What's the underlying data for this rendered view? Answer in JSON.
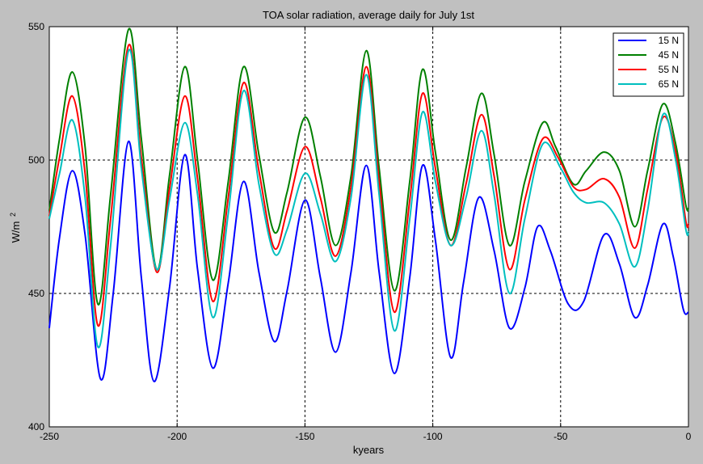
{
  "chart_data": {
    "type": "line",
    "title": "TOA solar radiation, average daily for July 1st",
    "xlabel": "kyears",
    "ylabel": "W/m",
    "ylabel_superscript": "2",
    "xlim": [
      -250,
      0
    ],
    "ylim": [
      400,
      550
    ],
    "xticks": [
      -250,
      -200,
      -150,
      -100,
      -50,
      0
    ],
    "yticks": [
      400,
      450,
      500,
      550
    ],
    "grid": true,
    "legend_position": "top-right",
    "series": [
      {
        "name": "15 N",
        "color": "#0000ff",
        "points": [
          [
            -250,
            437
          ],
          [
            -246,
            471
          ],
          [
            -241,
            496
          ],
          [
            -236,
            472
          ],
          [
            -230,
            418
          ],
          [
            -225,
            450
          ],
          [
            -219,
            507
          ],
          [
            -214,
            456
          ],
          [
            -209,
            417
          ],
          [
            -203,
            452
          ],
          [
            -197,
            502
          ],
          [
            -192,
            459
          ],
          [
            -186,
            422
          ],
          [
            -180,
            454
          ],
          [
            -174,
            492
          ],
          [
            -168,
            458
          ],
          [
            -162,
            432
          ],
          [
            -157,
            451
          ],
          [
            -150,
            485
          ],
          [
            -144,
            456
          ],
          [
            -138,
            428
          ],
          [
            -132,
            458
          ],
          [
            -126,
            498
          ],
          [
            -121,
            458
          ],
          [
            -115,
            420
          ],
          [
            -109,
            456
          ],
          [
            -104,
            498
          ],
          [
            -99,
            470
          ],
          [
            -93,
            426
          ],
          [
            -88,
            454
          ],
          [
            -82,
            486
          ],
          [
            -76,
            466
          ],
          [
            -70,
            437
          ],
          [
            -64,
            452
          ],
          [
            -59,
            475
          ],
          [
            -54,
            466
          ],
          [
            -47,
            446
          ],
          [
            -41,
            447
          ],
          [
            -33,
            472
          ],
          [
            -27,
            461
          ],
          [
            -21,
            441
          ],
          [
            -16,
            453
          ],
          [
            -10,
            476
          ],
          [
            -6,
            464
          ],
          [
            -2,
            444
          ],
          [
            0,
            443
          ]
        ]
      },
      {
        "name": "45 N",
        "color": "#008000",
        "points": [
          [
            -250,
            481
          ],
          [
            -246,
            508
          ],
          [
            -241,
            533
          ],
          [
            -236,
            505
          ],
          [
            -231,
            446
          ],
          [
            -226,
            487
          ],
          [
            -219,
            549
          ],
          [
            -214,
            508
          ],
          [
            -208,
            459
          ],
          [
            -203,
            494
          ],
          [
            -197,
            535
          ],
          [
            -192,
            500
          ],
          [
            -186,
            455
          ],
          [
            -180,
            492
          ],
          [
            -174,
            535
          ],
          [
            -168,
            502
          ],
          [
            -162,
            473
          ],
          [
            -157,
            488
          ],
          [
            -150,
            516
          ],
          [
            -144,
            494
          ],
          [
            -138,
            468
          ],
          [
            -132,
            494
          ],
          [
            -126,
            541
          ],
          [
            -121,
            497
          ],
          [
            -115,
            451
          ],
          [
            -109,
            492
          ],
          [
            -104,
            534
          ],
          [
            -99,
            503
          ],
          [
            -93,
            470
          ],
          [
            -87,
            497
          ],
          [
            -81,
            525
          ],
          [
            -76,
            502
          ],
          [
            -70,
            468
          ],
          [
            -64,
            492
          ],
          [
            -57,
            514
          ],
          [
            -52,
            505
          ],
          [
            -45,
            491
          ],
          [
            -40,
            496
          ],
          [
            -33,
            503
          ],
          [
            -27,
            496
          ],
          [
            -21,
            475
          ],
          [
            -16,
            496
          ],
          [
            -10,
            521
          ],
          [
            -5,
            506
          ],
          [
            -1,
            483
          ],
          [
            0,
            482
          ]
        ]
      },
      {
        "name": "55 N",
        "color": "#ff0000",
        "points": [
          [
            -250,
            479
          ],
          [
            -246,
            501
          ],
          [
            -241,
            524
          ],
          [
            -236,
            495
          ],
          [
            -231,
            438
          ],
          [
            -226,
            478
          ],
          [
            -219,
            543
          ],
          [
            -214,
            501
          ],
          [
            -208,
            458
          ],
          [
            -203,
            489
          ],
          [
            -197,
            524
          ],
          [
            -192,
            493
          ],
          [
            -186,
            447
          ],
          [
            -180,
            486
          ],
          [
            -174,
            529
          ],
          [
            -168,
            496
          ],
          [
            -162,
            467
          ],
          [
            -157,
            481
          ],
          [
            -150,
            505
          ],
          [
            -144,
            486
          ],
          [
            -138,
            464
          ],
          [
            -132,
            490
          ],
          [
            -126,
            535
          ],
          [
            -121,
            492
          ],
          [
            -115,
            443
          ],
          [
            -109,
            485
          ],
          [
            -104,
            525
          ],
          [
            -99,
            497
          ],
          [
            -93,
            468
          ],
          [
            -87,
            491
          ],
          [
            -81,
            517
          ],
          [
            -76,
            494
          ],
          [
            -70,
            459
          ],
          [
            -64,
            485
          ],
          [
            -57,
            508
          ],
          [
            -51,
            501
          ],
          [
            -45,
            490
          ],
          [
            -40,
            489
          ],
          [
            -33,
            493
          ],
          [
            -27,
            486
          ],
          [
            -21,
            467
          ],
          [
            -16,
            489
          ],
          [
            -10,
            516
          ],
          [
            -5,
            503
          ],
          [
            -1,
            477
          ],
          [
            0,
            476
          ]
        ]
      },
      {
        "name": "65 N",
        "color": "#00bfbf",
        "points": [
          [
            -250,
            478
          ],
          [
            -246,
            495
          ],
          [
            -241,
            515
          ],
          [
            -236,
            486
          ],
          [
            -231,
            430
          ],
          [
            -226,
            468
          ],
          [
            -219,
            541
          ],
          [
            -214,
            497
          ],
          [
            -208,
            459
          ],
          [
            -203,
            485
          ],
          [
            -197,
            514
          ],
          [
            -192,
            487
          ],
          [
            -186,
            441
          ],
          [
            -180,
            480
          ],
          [
            -174,
            526
          ],
          [
            -168,
            491
          ],
          [
            -162,
            465
          ],
          [
            -157,
            474
          ],
          [
            -150,
            495
          ],
          [
            -144,
            480
          ],
          [
            -138,
            462
          ],
          [
            -132,
            486
          ],
          [
            -126,
            532
          ],
          [
            -121,
            487
          ],
          [
            -115,
            436
          ],
          [
            -109,
            478
          ],
          [
            -104,
            518
          ],
          [
            -99,
            492
          ],
          [
            -93,
            468
          ],
          [
            -87,
            486
          ],
          [
            -81,
            511
          ],
          [
            -76,
            487
          ],
          [
            -70,
            450
          ],
          [
            -64,
            478
          ],
          [
            -57,
            506
          ],
          [
            -50,
            497
          ],
          [
            -45,
            488
          ],
          [
            -40,
            484
          ],
          [
            -33,
            484
          ],
          [
            -27,
            476
          ],
          [
            -21,
            460
          ],
          [
            -16,
            481
          ],
          [
            -10,
            517
          ],
          [
            -5,
            500
          ],
          [
            -1,
            474
          ],
          [
            0,
            473
          ]
        ]
      }
    ]
  }
}
